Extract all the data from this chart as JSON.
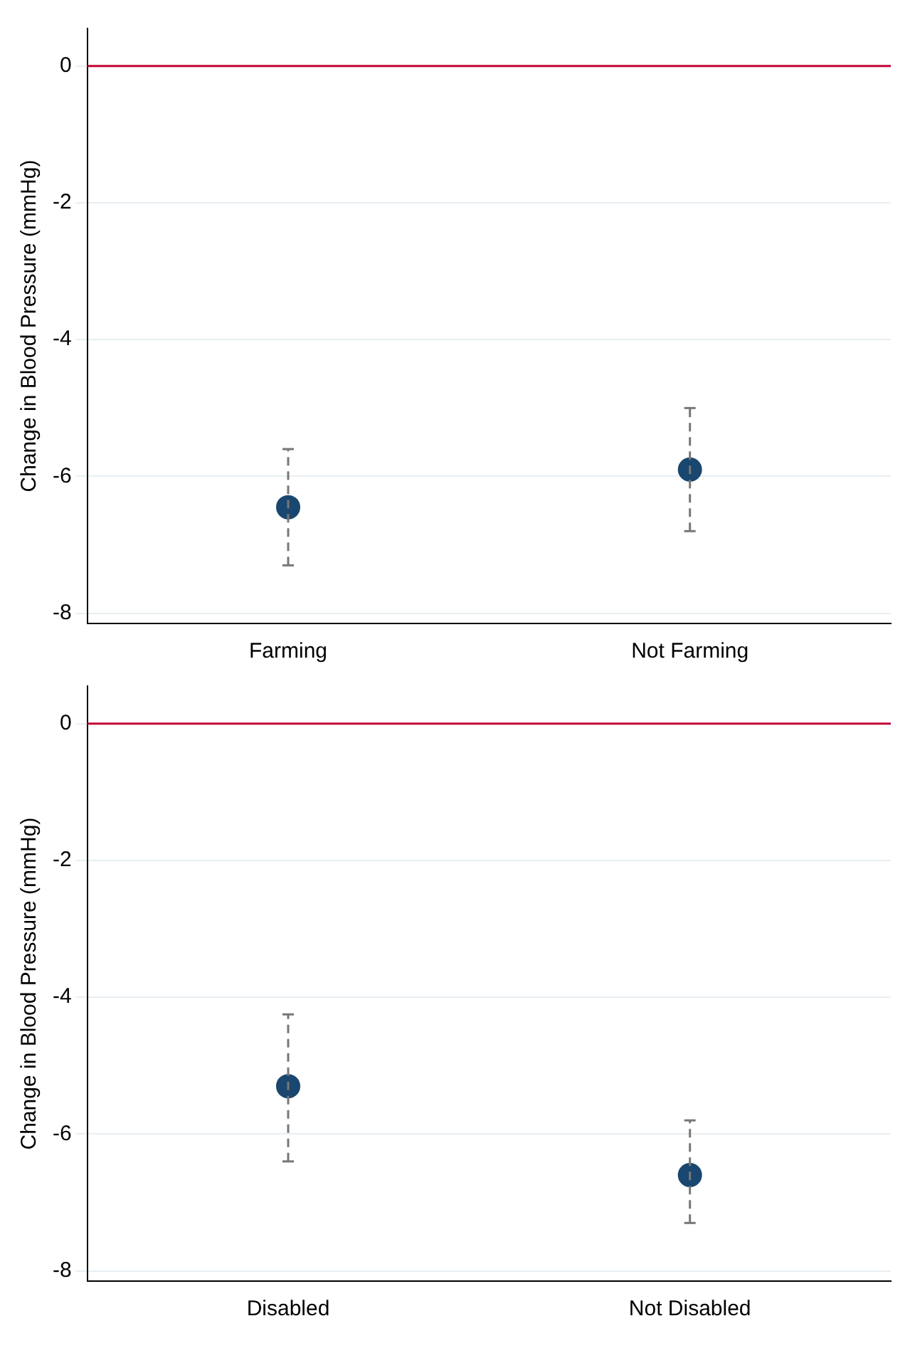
{
  "chart_data": [
    {
      "type": "scatter",
      "categories": [
        "Farming",
        "Not Farming"
      ],
      "values": [
        -6.45,
        -5.9
      ],
      "errors": [
        [
          -7.3,
          -5.6
        ],
        [
          -6.8,
          -5.0
        ]
      ],
      "color": "#1a476f",
      "marker": "circle",
      "ylabel": "Change in Blood Pressure (mmHg)",
      "ylim": [
        -8.15,
        0.55
      ],
      "yticks": [
        0,
        -2,
        -4,
        -6,
        -8
      ],
      "grid": "y",
      "ref_lines": [
        {
          "axis": "y",
          "value": 0,
          "color": "#c10534"
        }
      ]
    },
    {
      "type": "scatter",
      "categories": [
        "Disabled",
        "Not Disabled"
      ],
      "values": [
        -5.3,
        -6.6
      ],
      "errors": [
        [
          -6.4,
          -4.25
        ],
        [
          -7.3,
          -5.8
        ]
      ],
      "color": "#1a476f",
      "marker": "circle",
      "ylabel": "Change in Blood Pressure (mmHg)",
      "ylim": [
        -8.15,
        0.55
      ],
      "yticks": [
        0,
        -2,
        -4,
        -6,
        -8
      ],
      "grid": "y",
      "ref_lines": [
        {
          "axis": "y",
          "value": 0,
          "color": "#c10534"
        }
      ]
    }
  ]
}
